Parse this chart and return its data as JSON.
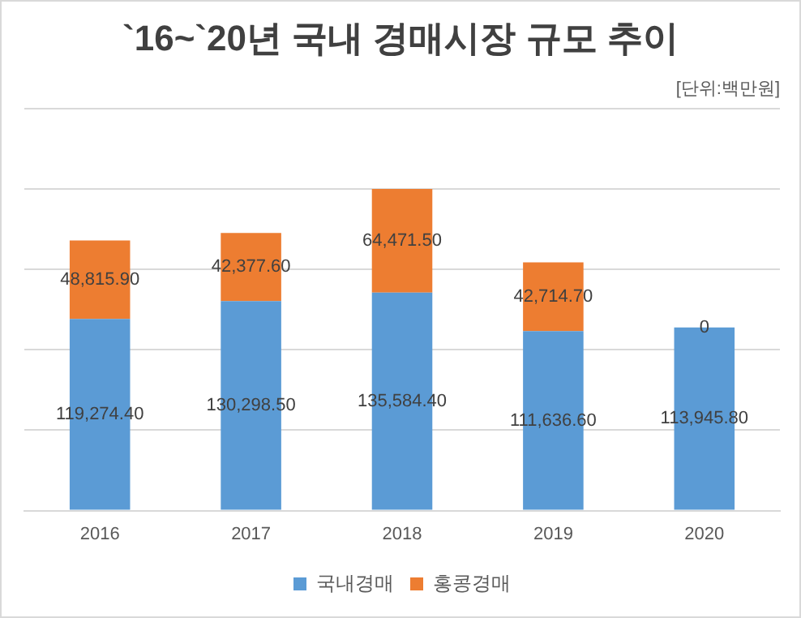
{
  "chart_data": {
    "type": "bar",
    "title": "`16~`20년 국내 경매시장 규모 추이",
    "annotations": [
      "[단위:백만원]"
    ],
    "categories": [
      "2016",
      "2017",
      "2018",
      "2019",
      "2020"
    ],
    "stacked": true,
    "series": [
      {
        "name": "국내경매",
        "color": "#5b9bd5",
        "values": [
          119274.4,
          130298.5,
          135584.4,
          111636.6,
          113945.8
        ],
        "value_labels": [
          "119,274.40",
          "130,298.50",
          "135,584.40",
          "111,636.60",
          "113,945.80"
        ]
      },
      {
        "name": "홍콩경매",
        "color": "#ed7d31",
        "values": [
          48815.9,
          42377.6,
          64471.5,
          42714.7,
          0
        ],
        "value_labels": [
          "48,815.90",
          "42,377.60",
          "64,471.50",
          "42,714.70",
          "0"
        ]
      }
    ],
    "tick_labels": "x",
    "grid": "y",
    "legend": "bottom"
  }
}
